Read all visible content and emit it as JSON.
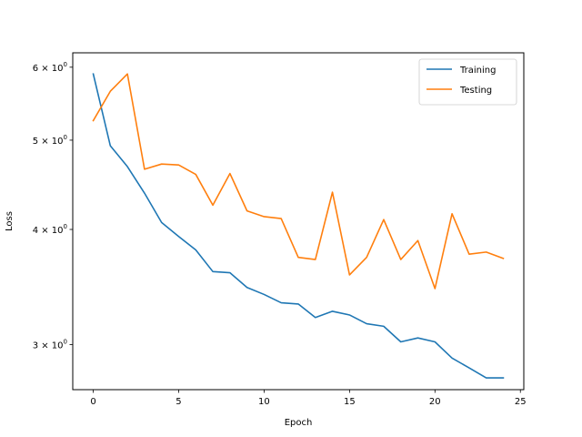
{
  "chart_data": {
    "type": "line",
    "title": "",
    "xlabel": "Epoch",
    "ylabel": "Loss",
    "yscale": "log",
    "xlim": [
      -1.2,
      25.2
    ],
    "ylim": [
      2.68,
      6.22
    ],
    "grid": false,
    "legend_position": "top-right",
    "x_ticks": [
      0,
      5,
      10,
      15,
      20,
      25
    ],
    "x_tick_labels": [
      "0",
      "5",
      "10",
      "15",
      "20",
      "25"
    ],
    "y_ticks": [
      3,
      4,
      5,
      6
    ],
    "y_tick_labels": [
      {
        "base": "3 × 10",
        "exp": "0"
      },
      {
        "base": "4 × 10",
        "exp": "0"
      },
      {
        "base": "5 × 10",
        "exp": "0"
      },
      {
        "base": "6 × 10",
        "exp": "0"
      }
    ],
    "x": [
      0,
      1,
      2,
      3,
      4,
      5,
      6,
      7,
      8,
      9,
      10,
      11,
      12,
      13,
      14,
      15,
      16,
      17,
      18,
      19,
      20,
      21,
      22,
      23,
      24
    ],
    "series": [
      {
        "name": "Training",
        "color": "#1f77b4",
        "values": [
          5.9,
          4.93,
          4.68,
          4.38,
          4.07,
          3.93,
          3.8,
          3.6,
          3.59,
          3.46,
          3.4,
          3.33,
          3.32,
          3.21,
          3.26,
          3.23,
          3.16,
          3.14,
          3.02,
          3.05,
          3.02,
          2.9,
          2.83,
          2.76,
          2.76
        ]
      },
      {
        "name": "Testing",
        "color": "#ff7f0e",
        "values": [
          5.25,
          5.65,
          5.9,
          4.65,
          4.71,
          4.7,
          4.59,
          4.25,
          4.6,
          4.19,
          4.13,
          4.11,
          3.73,
          3.71,
          4.39,
          3.57,
          3.73,
          4.1,
          3.71,
          3.89,
          3.45,
          4.16,
          3.76,
          3.78,
          3.72
        ]
      }
    ]
  }
}
